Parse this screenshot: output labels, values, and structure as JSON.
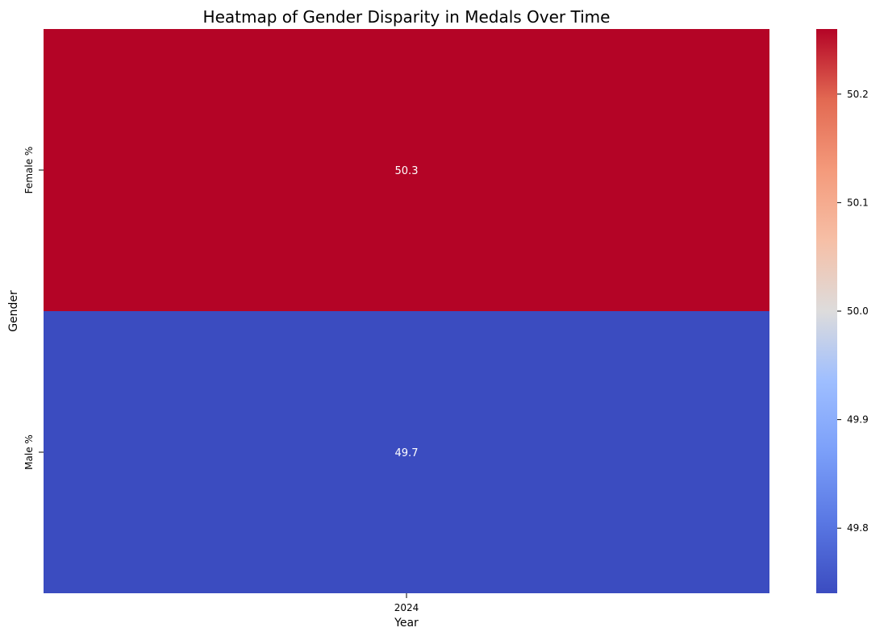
{
  "chart_data": {
    "type": "heatmap",
    "title": "Heatmap of Gender Disparity in Medals Over Time",
    "xlabel": "Year",
    "ylabel": "Gender",
    "x_categories": [
      "2024"
    ],
    "y_categories": [
      "Female %",
      "Male %"
    ],
    "values": [
      [
        50.3
      ],
      [
        49.7
      ]
    ],
    "value_labels": [
      [
        "50.3"
      ],
      [
        "49.7"
      ]
    ],
    "colormap": "coolwarm",
    "colorbar": {
      "range": [
        49.74,
        50.26
      ],
      "ticks": [
        "49.8",
        "49.9",
        "50.0",
        "50.1",
        "50.2"
      ]
    },
    "colors": {
      "high": "#b40426",
      "low": "#3b4cc0",
      "annotation_text": "#ffffff"
    }
  }
}
